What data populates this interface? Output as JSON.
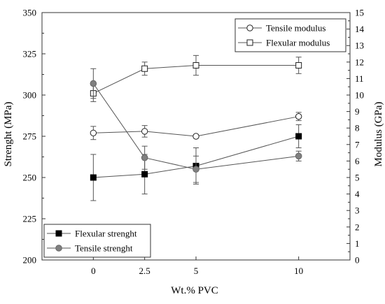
{
  "chart_data": {
    "type": "line",
    "title": "",
    "xlabel": "Wt.% PVC",
    "ylabel_left": "Strenght (MPa)",
    "ylabel_right": "Modulus (GPa)",
    "x_ticks": [
      0,
      2.5,
      5,
      10
    ],
    "x_tick_labels": [
      "0",
      "2.5",
      "5",
      "10"
    ],
    "y_left_lim": [
      200,
      350
    ],
    "y_left_ticks": [
      200,
      225,
      250,
      275,
      300,
      325,
      350
    ],
    "y_right_lim": [
      0,
      15
    ],
    "y_right_ticks": [
      0,
      1,
      2,
      3,
      4,
      5,
      6,
      7,
      8,
      9,
      10,
      11,
      12,
      13,
      14,
      15
    ],
    "grid": false,
    "series": [
      {
        "name": "Tensile modulus",
        "axis": "right",
        "marker": "open-circle",
        "color": "#ffffff",
        "x": [
          0,
          2.5,
          5,
          10
        ],
        "y": [
          7.7,
          7.8,
          7.5,
          8.7
        ],
        "err": [
          0.4,
          0.35,
          0.1,
          0.25
        ]
      },
      {
        "name": "Flexular modulus",
        "axis": "right",
        "marker": "open-square",
        "color": "#ffffff",
        "x": [
          0,
          2.5,
          5,
          10
        ],
        "y": [
          10.1,
          11.6,
          11.8,
          11.8
        ],
        "err": [
          0.5,
          0.4,
          0.6,
          0.5
        ]
      },
      {
        "name": "Flexular strenght",
        "axis": "left",
        "marker": "filled-square",
        "color": "#000000",
        "x": [
          0,
          2.5,
          5,
          10
        ],
        "y": [
          250,
          252,
          257,
          275
        ],
        "err": [
          14,
          12,
          11,
          7
        ]
      },
      {
        "name": "Tensile strenght",
        "axis": "left",
        "marker": "filled-circle",
        "color": "#808080",
        "x": [
          0,
          2.5,
          5,
          10
        ],
        "y": [
          307,
          262,
          255,
          263
        ],
        "err": [
          9,
          7,
          8,
          3
        ]
      }
    ],
    "legends": [
      {
        "placement": "top-right",
        "series": [
          "Tensile modulus",
          "Flexular modulus"
        ]
      },
      {
        "placement": "bottom-left",
        "series": [
          "Flexular strenght",
          "Tensile strenght"
        ]
      }
    ]
  }
}
